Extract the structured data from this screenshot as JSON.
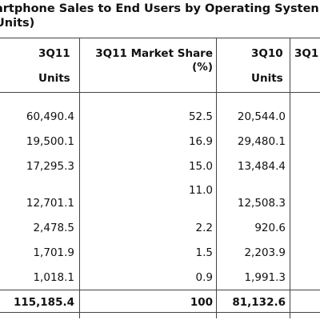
{
  "title": {
    "line1": "artphone Sales to End Users by Operating Systen",
    "line2": "Units)"
  },
  "columns": [
    {
      "line1": "3Q11",
      "line2": "Units"
    },
    {
      "line1": "3Q11 Market Share",
      "line2": "(%)"
    },
    {
      "line1": "3Q10",
      "line2": "Units"
    },
    {
      "line1": "3Q1",
      "line2": ""
    }
  ],
  "rows": [
    {
      "units_3q11": "60,490.4",
      "share_3q11": "52.5",
      "units_3q10": "20,544.0"
    },
    {
      "units_3q11": "19,500.1",
      "share_3q11": "16.9",
      "units_3q10": "29,480.1"
    },
    {
      "units_3q11": "17,295.3",
      "share_3q11": "15.0",
      "units_3q10": "13,484.4"
    },
    {
      "units_3q11": "",
      "share_3q11": "11.0",
      "units_3q10": ""
    },
    {
      "units_3q11": "12,701.1",
      "share_3q11": "",
      "units_3q10": "12,508.3"
    },
    {
      "units_3q11": "2,478.5",
      "share_3q11": "2.2",
      "units_3q10": "920.6"
    },
    {
      "units_3q11": "1,701.9",
      "share_3q11": "1.5",
      "units_3q10": "2,203.9"
    },
    {
      "units_3q11": "1,018.1",
      "share_3q11": "0.9",
      "units_3q10": "1,991.3"
    }
  ],
  "total": {
    "units_3q11": "115,185.4",
    "share_3q11": "100",
    "units_3q10": "81,132.6"
  }
}
